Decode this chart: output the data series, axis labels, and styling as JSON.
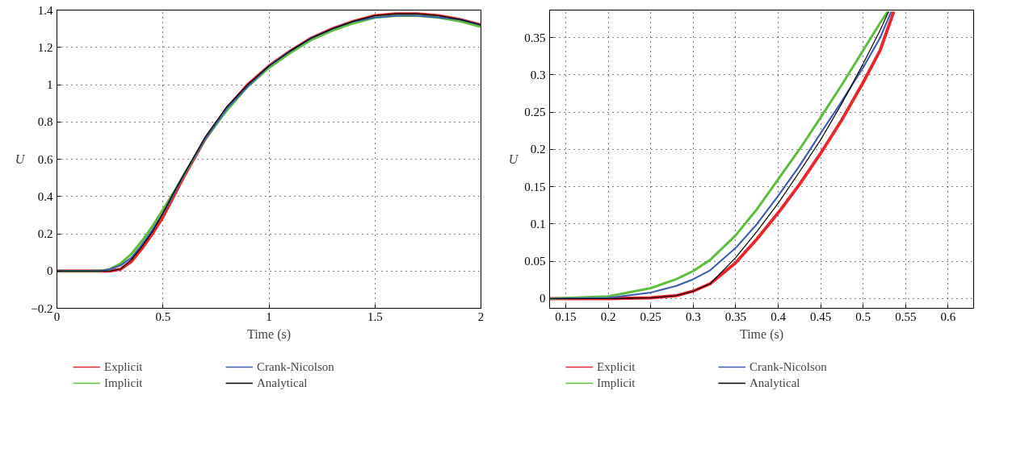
{
  "chart_data": [
    {
      "type": "line",
      "xlabel": "Time (s)",
      "ylabel": "U",
      "xlim": [
        0,
        2
      ],
      "ylim": [
        -0.2,
        1.4
      ],
      "xticks": [
        0,
        0.5,
        1,
        1.5,
        2
      ],
      "yticks": [
        -0.2,
        0,
        0.2,
        0.4,
        0.6,
        0.8,
        1,
        1.2,
        1.4
      ],
      "grid": true,
      "legend": "bottom",
      "line_style": "solid",
      "marker": "none",
      "x": [
        0,
        0.2,
        0.25,
        0.3,
        0.35,
        0.4,
        0.45,
        0.5,
        0.55,
        0.6,
        0.7,
        0.8,
        0.9,
        1.0,
        1.1,
        1.2,
        1.3,
        1.4,
        1.5,
        1.6,
        1.7,
        1.8,
        1.9,
        2.0
      ],
      "series": [
        {
          "name": "Explicit",
          "color": "#e8262b",
          "values": [
            0,
            0,
            0,
            0.01,
            0.05,
            0.12,
            0.2,
            0.29,
            0.4,
            0.51,
            0.71,
            0.87,
            1.0,
            1.1,
            1.18,
            1.25,
            1.3,
            1.34,
            1.37,
            1.38,
            1.38,
            1.37,
            1.35,
            1.32
          ]
        },
        {
          "name": "Implicit",
          "color": "#5cbf3c",
          "values": [
            0,
            0,
            0.01,
            0.04,
            0.09,
            0.16,
            0.24,
            0.33,
            0.42,
            0.52,
            0.71,
            0.86,
            0.99,
            1.09,
            1.17,
            1.24,
            1.29,
            1.33,
            1.36,
            1.37,
            1.37,
            1.36,
            1.34,
            1.31
          ]
        },
        {
          "name": "Crank-Nicolson",
          "color": "#3a5cb5",
          "values": [
            0,
            0,
            0.01,
            0.03,
            0.07,
            0.14,
            0.22,
            0.31,
            0.41,
            0.52,
            0.71,
            0.87,
            0.99,
            1.1,
            1.18,
            1.25,
            1.3,
            1.34,
            1.36,
            1.37,
            1.37,
            1.36,
            1.35,
            1.32
          ]
        },
        {
          "name": "Analytical",
          "color": "#000000",
          "values": [
            0,
            0,
            0,
            0.01,
            0.06,
            0.13,
            0.21,
            0.31,
            0.42,
            0.52,
            0.72,
            0.88,
            1.0,
            1.1,
            1.18,
            1.25,
            1.3,
            1.34,
            1.37,
            1.38,
            1.38,
            1.37,
            1.35,
            1.32
          ]
        }
      ]
    },
    {
      "type": "line",
      "xlabel": "Time (s)",
      "ylabel": "U",
      "xlim": [
        0.131,
        0.63
      ],
      "ylim": [
        -0.013,
        0.387
      ],
      "xticks": [
        0.15,
        0.2,
        0.25,
        0.3,
        0.35,
        0.4,
        0.45,
        0.5,
        0.55,
        0.6
      ],
      "yticks": [
        0,
        0.05,
        0.1,
        0.15,
        0.2,
        0.25,
        0.3,
        0.35
      ],
      "grid": true,
      "legend": "bottom",
      "line_style": "solid",
      "marker": "none",
      "series": [
        {
          "name": "Explicit",
          "color": "#e8262b",
          "x": [
            0.131,
            0.2,
            0.25,
            0.28,
            0.3,
            0.32,
            0.35,
            0.375,
            0.4,
            0.425,
            0.45,
            0.475,
            0.5,
            0.52,
            0.536
          ],
          "values": [
            0,
            0,
            0.001,
            0.004,
            0.01,
            0.02,
            0.048,
            0.08,
            0.115,
            0.153,
            0.195,
            0.24,
            0.29,
            0.333,
            0.385
          ]
        },
        {
          "name": "Implicit",
          "color": "#5cbf3c",
          "x": [
            0.131,
            0.2,
            0.25,
            0.28,
            0.3,
            0.32,
            0.35,
            0.375,
            0.4,
            0.425,
            0.45,
            0.475,
            0.5,
            0.52,
            0.529
          ],
          "values": [
            0,
            0.003,
            0.014,
            0.026,
            0.037,
            0.052,
            0.085,
            0.12,
            0.16,
            0.2,
            0.243,
            0.287,
            0.333,
            0.37,
            0.385
          ]
        },
        {
          "name": "Crank-Nicolson",
          "color": "#3a5cb5",
          "x": [
            0.131,
            0.2,
            0.25,
            0.28,
            0.3,
            0.32,
            0.35,
            0.375,
            0.4,
            0.425,
            0.45,
            0.475,
            0.5,
            0.52,
            0.533
          ],
          "values": [
            0,
            0.001,
            0.008,
            0.017,
            0.026,
            0.038,
            0.068,
            0.1,
            0.138,
            0.178,
            0.222,
            0.265,
            0.31,
            0.35,
            0.385
          ]
        },
        {
          "name": "Analytical",
          "color": "#000000",
          "x": [
            0.131,
            0.2,
            0.25,
            0.28,
            0.3,
            0.32,
            0.35,
            0.375,
            0.4,
            0.425,
            0.45,
            0.475,
            0.5,
            0.52,
            0.53
          ],
          "values": [
            0,
            0,
            0.001,
            0.004,
            0.01,
            0.02,
            0.055,
            0.09,
            0.128,
            0.17,
            0.213,
            0.262,
            0.315,
            0.36,
            0.385
          ]
        }
      ]
    }
  ]
}
